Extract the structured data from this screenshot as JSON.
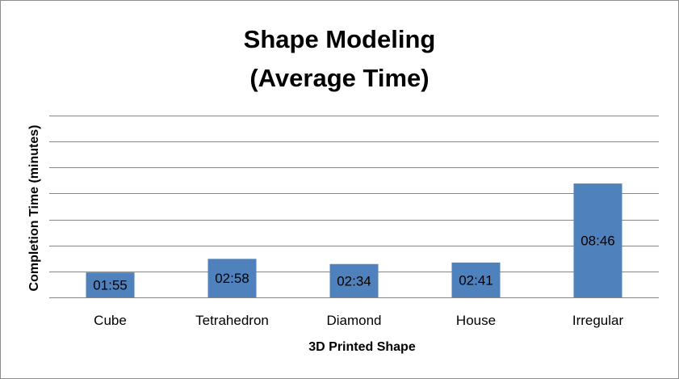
{
  "chart_data": {
    "type": "bar",
    "title": [
      "Shape Modeling",
      "(Average Time)"
    ],
    "xlabel": "3D Printed Shape",
    "ylabel": "Completion Time (minutes)",
    "categories": [
      "Cube",
      "Tetrahedron",
      "Diamond",
      "House",
      "Irregular"
    ],
    "values": [
      1.9167,
      2.9667,
      2.5667,
      2.6833,
      8.7667
    ],
    "data_labels": [
      "01:55",
      "02:58",
      "02:34",
      "02:41",
      "08:46"
    ],
    "ylim": [
      0,
      14
    ],
    "y_gridline_step": 2,
    "y_tick_labels_visible": false,
    "grid": true,
    "legend": "none",
    "bar_color": "#4f81bd"
  }
}
